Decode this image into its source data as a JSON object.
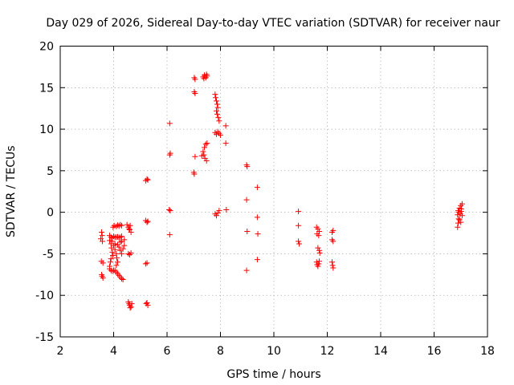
{
  "chart_data": {
    "type": "scatter",
    "title": "Day 029 of 2026, Sidereal Day-to-day VTEC variation (SDTVAR) for receiver naur",
    "xlabel": "GPS time / hours",
    "ylabel": "SDTVAR / TECUs",
    "xlim": [
      2,
      18
    ],
    "ylim": [
      -15,
      20
    ],
    "xticks": [
      2,
      4,
      6,
      8,
      10,
      12,
      14,
      16,
      18
    ],
    "yticks": [
      -15,
      -10,
      -5,
      0,
      5,
      10,
      15,
      20
    ],
    "xtick_labels": [
      "2",
      "4",
      "6",
      "8",
      "10",
      "12",
      "14",
      "16",
      "18"
    ],
    "ytick_labels": [
      "-15",
      "-10",
      "-5",
      "0",
      "5",
      "10",
      "15",
      "20"
    ],
    "grid": true,
    "marker": "+",
    "color": "#ff0000",
    "series": [
      {
        "name": "SDTVAR",
        "points": [
          [
            3.55,
            -2.4
          ],
          [
            3.57,
            -2.8
          ],
          [
            3.52,
            -3.2
          ],
          [
            3.58,
            -3.5
          ],
          [
            3.54,
            -5.9
          ],
          [
            3.6,
            -6.1
          ],
          [
            3.55,
            -7.5
          ],
          [
            3.6,
            -7.9
          ],
          [
            3.57,
            -7.7
          ],
          [
            3.85,
            -2.8
          ],
          [
            3.9,
            -3.0
          ],
          [
            3.95,
            -3.1
          ],
          [
            4.0,
            -2.9
          ],
          [
            4.05,
            -3.0
          ],
          [
            4.1,
            -3.0
          ],
          [
            4.15,
            -2.95
          ],
          [
            4.2,
            -3.05
          ],
          [
            4.25,
            -3.0
          ],
          [
            4.3,
            -2.9
          ],
          [
            3.85,
            -3.4
          ],
          [
            3.9,
            -3.8
          ],
          [
            3.92,
            -4.3
          ],
          [
            3.95,
            -4.8
          ],
          [
            3.97,
            -5.2
          ],
          [
            3.9,
            -5.6
          ],
          [
            3.88,
            -6.0
          ],
          [
            3.85,
            -6.5
          ],
          [
            4.0,
            -4.0
          ],
          [
            4.05,
            -4.5
          ],
          [
            4.1,
            -5.0
          ],
          [
            4.12,
            -5.5
          ],
          [
            4.15,
            -6.0
          ],
          [
            4.1,
            -6.4
          ],
          [
            4.2,
            -4.2
          ],
          [
            4.25,
            -4.6
          ],
          [
            4.3,
            -5.0
          ],
          [
            4.35,
            -4.4
          ],
          [
            4.4,
            -4.0
          ],
          [
            4.25,
            -3.6
          ],
          [
            3.85,
            -6.8
          ],
          [
            3.9,
            -7.0
          ],
          [
            3.95,
            -7.1
          ],
          [
            4.0,
            -7.0
          ],
          [
            4.05,
            -7.0
          ],
          [
            4.1,
            -7.2
          ],
          [
            4.15,
            -7.4
          ],
          [
            4.2,
            -7.6
          ],
          [
            4.25,
            -7.8
          ],
          [
            4.3,
            -8.0
          ],
          [
            4.35,
            -8.1
          ],
          [
            3.95,
            -3.5
          ],
          [
            4.05,
            -3.8
          ],
          [
            4.15,
            -3.9
          ],
          [
            4.3,
            -3.5
          ],
          [
            4.4,
            -3.3
          ],
          [
            3.98,
            -1.8
          ],
          [
            4.02,
            -1.6
          ],
          [
            4.1,
            -1.7
          ],
          [
            4.15,
            -1.55
          ],
          [
            4.2,
            -1.65
          ],
          [
            4.25,
            -1.5
          ],
          [
            4.3,
            -1.6
          ],
          [
            4.5,
            -1.5
          ],
          [
            4.55,
            -1.8
          ],
          [
            4.6,
            -2.1
          ],
          [
            4.65,
            -2.4
          ],
          [
            4.58,
            -2.0
          ],
          [
            4.62,
            -1.6
          ],
          [
            4.55,
            -5.0
          ],
          [
            4.6,
            -5.1
          ],
          [
            4.65,
            -4.9
          ],
          [
            4.55,
            -10.8
          ],
          [
            4.58,
            -11.0
          ],
          [
            4.6,
            -11.2
          ],
          [
            4.65,
            -11.4
          ],
          [
            4.68,
            -11.0
          ],
          [
            4.62,
            -11.5
          ],
          [
            5.22,
            -11.0
          ],
          [
            5.25,
            -10.9
          ],
          [
            5.28,
            -11.2
          ],
          [
            5.2,
            -6.2
          ],
          [
            5.25,
            -6.1
          ],
          [
            5.2,
            -1.0
          ],
          [
            5.25,
            -1.2
          ],
          [
            5.28,
            -1.1
          ],
          [
            5.2,
            3.8
          ],
          [
            5.25,
            4.0
          ],
          [
            5.28,
            3.9
          ],
          [
            6.1,
            10.7
          ],
          [
            6.1,
            6.9
          ],
          [
            6.12,
            7.1
          ],
          [
            6.08,
            0.3
          ],
          [
            6.12,
            0.2
          ],
          [
            6.1,
            -2.7
          ],
          [
            7.02,
            16.2
          ],
          [
            7.05,
            16.0
          ],
          [
            7.02,
            14.5
          ],
          [
            7.05,
            14.3
          ],
          [
            7.35,
            16.3
          ],
          [
            7.4,
            16.5
          ],
          [
            7.45,
            16.2
          ],
          [
            7.5,
            16.4
          ],
          [
            7.38,
            16.1
          ],
          [
            7.48,
            16.6
          ],
          [
            7.05,
            6.7
          ],
          [
            7.0,
            4.8
          ],
          [
            7.02,
            4.6
          ],
          [
            7.3,
            6.8
          ],
          [
            7.35,
            7.3
          ],
          [
            7.4,
            7.8
          ],
          [
            7.45,
            8.2
          ],
          [
            7.5,
            8.3
          ],
          [
            7.42,
            6.5
          ],
          [
            7.48,
            6.2
          ],
          [
            7.38,
            6.9
          ],
          [
            7.8,
            14.2
          ],
          [
            7.82,
            13.8
          ],
          [
            7.85,
            13.4
          ],
          [
            7.88,
            13.0
          ],
          [
            7.9,
            12.6
          ],
          [
            7.85,
            12.2
          ],
          [
            7.88,
            11.8
          ],
          [
            7.92,
            11.4
          ],
          [
            7.95,
            11.0
          ],
          [
            7.8,
            9.6
          ],
          [
            7.85,
            9.4
          ],
          [
            7.9,
            9.7
          ],
          [
            7.95,
            9.5
          ],
          [
            8.0,
            9.3
          ],
          [
            7.8,
            -0.2
          ],
          [
            7.85,
            -0.4
          ],
          [
            7.9,
            -0.1
          ],
          [
            7.95,
            0.2
          ],
          [
            8.2,
            10.4
          ],
          [
            8.2,
            8.3
          ],
          [
            8.22,
            0.3
          ],
          [
            8.98,
            5.7
          ],
          [
            9.0,
            5.5
          ],
          [
            8.98,
            1.5
          ],
          [
            9.0,
            -2.3
          ],
          [
            8.98,
            -7.0
          ],
          [
            9.38,
            3.0
          ],
          [
            9.38,
            -0.6
          ],
          [
            9.4,
            -2.6
          ],
          [
            9.38,
            -5.7
          ],
          [
            10.92,
            0.1
          ],
          [
            10.92,
            -1.6
          ],
          [
            10.92,
            -3.5
          ],
          [
            10.95,
            -3.8
          ],
          [
            11.6,
            -1.8
          ],
          [
            11.65,
            -2.0
          ],
          [
            11.7,
            -2.3
          ],
          [
            11.62,
            -2.6
          ],
          [
            11.68,
            -2.8
          ],
          [
            11.65,
            -4.3
          ],
          [
            11.7,
            -4.6
          ],
          [
            11.72,
            -4.9
          ],
          [
            11.6,
            -6.0
          ],
          [
            11.62,
            -6.3
          ],
          [
            11.68,
            -6.2
          ],
          [
            11.7,
            -5.9
          ],
          [
            11.65,
            -6.5
          ],
          [
            12.18,
            -2.4
          ],
          [
            12.22,
            -2.2
          ],
          [
            12.18,
            -3.3
          ],
          [
            12.22,
            -3.5
          ],
          [
            12.18,
            -6.0
          ],
          [
            12.2,
            -6.4
          ],
          [
            12.22,
            -6.7
          ],
          [
            16.88,
            -1.8
          ],
          [
            16.9,
            -1.3
          ],
          [
            16.92,
            -0.8
          ],
          [
            16.88,
            -0.3
          ],
          [
            16.9,
            0.2
          ],
          [
            16.95,
            0.5
          ],
          [
            17.0,
            0.8
          ],
          [
            17.05,
            1.0
          ],
          [
            16.98,
            -0.2
          ],
          [
            17.02,
            0.1
          ],
          [
            17.05,
            -0.4
          ],
          [
            16.95,
            -0.9
          ],
          [
            17.0,
            -1.2
          ],
          [
            17.02,
            0.4
          ],
          [
            16.92,
            0.0
          ]
        ]
      }
    ]
  }
}
